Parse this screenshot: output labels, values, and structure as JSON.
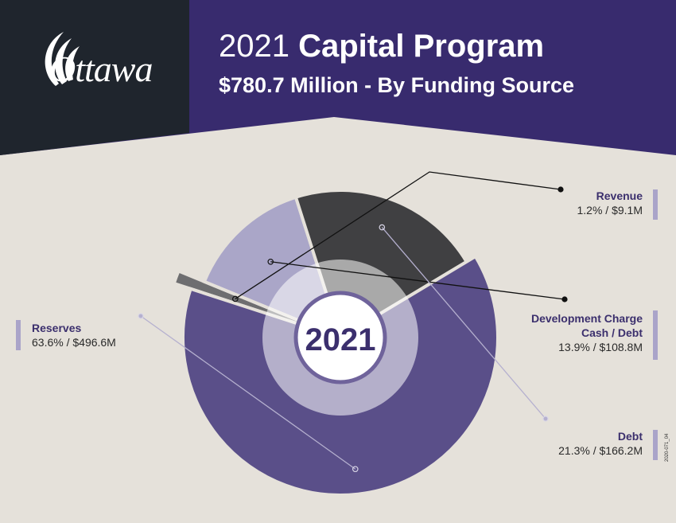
{
  "logo": {
    "text": "Ottawa"
  },
  "header": {
    "year": "2021",
    "title_bold": "Capital Program",
    "subtitle": "$780.7 Million - By Funding Source"
  },
  "center_label": "2021",
  "doc_code": "2020-071_04",
  "colors": {
    "header_purple": "#382b6e",
    "logo_block": "#1f252d",
    "background": "#e5e1da",
    "reserves": "#5a4f89",
    "revenue": "#6e6e70",
    "dcc": "#aaa6c8",
    "debt": "#404042"
  },
  "chart_data": {
    "type": "pie",
    "title": "2021 Capital Program",
    "subtitle": "$780.7 Million - By Funding Source",
    "total_millions": 780.7,
    "slices": [
      {
        "name": "Revenue",
        "label": "Revenue",
        "percent": 1.2,
        "value_millions": 9.1,
        "text": "1.2% / $9.1M",
        "color": "#6e6e70"
      },
      {
        "name": "Development Charge Cash / Debt",
        "label": "Development Charge",
        "label2": "Cash / Debt",
        "percent": 13.9,
        "value_millions": 108.8,
        "text": "13.9% / $108.8M",
        "color": "#aaa6c8"
      },
      {
        "name": "Debt",
        "label": "Debt",
        "percent": 21.3,
        "value_millions": 166.2,
        "text": "21.3% / $166.2M",
        "color": "#404042"
      },
      {
        "name": "Reserves",
        "label": "Reserves",
        "percent": 63.6,
        "value_millions": 496.6,
        "text": "63.6% / $496.6M",
        "color": "#5a4f89"
      }
    ]
  }
}
